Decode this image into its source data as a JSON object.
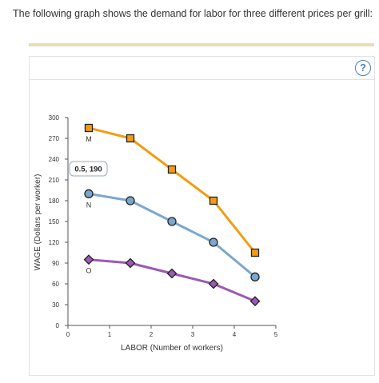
{
  "question": "The following graph shows the demand for labor for three different prices per grill:",
  "help_label": "?",
  "tooltip": "0.5, 190",
  "chart_data": {
    "type": "line",
    "xlabel": "LABOR (Number of workers)",
    "ylabel": "WAGE (Dollars per worker)",
    "xlim": [
      0,
      5
    ],
    "ylim": [
      0,
      300
    ],
    "xticks": [
      "0",
      "1",
      "2",
      "3",
      "4",
      "5"
    ],
    "yticks": [
      "0",
      "30",
      "60",
      "90",
      "120",
      "150",
      "180",
      "210",
      "240",
      "270",
      "300"
    ],
    "x": [
      0.5,
      1.5,
      2.5,
      3.5,
      4.5
    ],
    "series": [
      {
        "name": "M",
        "marker": "square",
        "color": "#f39c12",
        "values": [
          285,
          270,
          225,
          180,
          105
        ]
      },
      {
        "name": "N",
        "marker": "circle",
        "color": "#7ba7cf",
        "values": [
          190,
          180,
          150,
          120,
          70
        ]
      },
      {
        "name": "O",
        "marker": "diamond",
        "color": "#9b59b6",
        "values": [
          95,
          90,
          75,
          60,
          35
        ]
      }
    ]
  }
}
